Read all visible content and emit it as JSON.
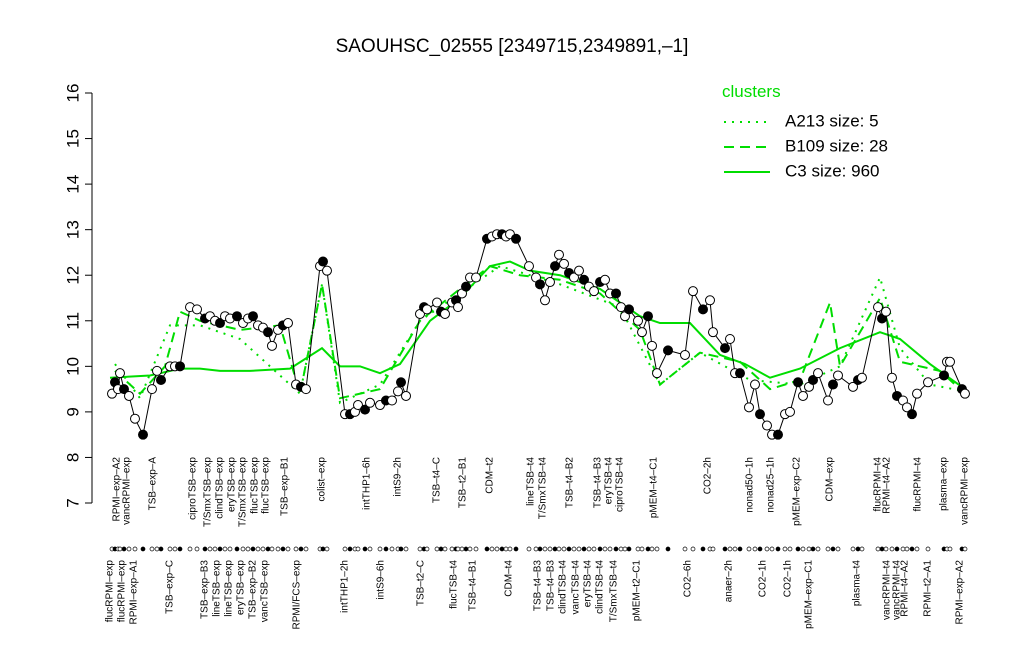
{
  "chart_data": {
    "type": "line",
    "title": "SAOUHSC_02555 [2349715,2349891,–1]",
    "ylim": [
      7,
      16
    ],
    "yticks": [
      7,
      8,
      9,
      10,
      11,
      12,
      13,
      14,
      15,
      16
    ],
    "xlim": [
      100,
      975
    ],
    "x": [
      112,
      115,
      118,
      120,
      124,
      129,
      135,
      143,
      152,
      157,
      161,
      170,
      175,
      180,
      190,
      197,
      205,
      210,
      215,
      220,
      225,
      230,
      237,
      243,
      248,
      253,
      258,
      263,
      268,
      272,
      278,
      283,
      288,
      296,
      301,
      306,
      320,
      323,
      327,
      345,
      350,
      355,
      358,
      365,
      370,
      380,
      386,
      392,
      398,
      401,
      406,
      420,
      424,
      427,
      437,
      441,
      445,
      452,
      456,
      458,
      462,
      466,
      470,
      476,
      487,
      492,
      497,
      502,
      506,
      510,
      516,
      529,
      536,
      540,
      545,
      550,
      555,
      559,
      564,
      569,
      574,
      579,
      584,
      589,
      594,
      600,
      605,
      610,
      616,
      621,
      625,
      629,
      638,
      642,
      648,
      652,
      657,
      668,
      685,
      693,
      703,
      710,
      713,
      725,
      730,
      735,
      740,
      749,
      755,
      760,
      767,
      772,
      778,
      785,
      790,
      798,
      803,
      809,
      813,
      818,
      828,
      833,
      838,
      853,
      858,
      862,
      878,
      882,
      886,
      892,
      897,
      903,
      907,
      912,
      917,
      928,
      944,
      947,
      950,
      962,
      965
    ],
    "values": [
      9.4,
      9.65,
      9.5,
      9.85,
      9.5,
      9.35,
      8.85,
      8.5,
      9.5,
      9.9,
      9.7,
      10.0,
      10.0,
      10.0,
      11.3,
      11.25,
      11.05,
      11.1,
      11.0,
      10.95,
      11.1,
      11.05,
      11.1,
      10.95,
      11.05,
      11.1,
      10.9,
      10.85,
      10.75,
      10.45,
      10.8,
      10.9,
      10.95,
      9.6,
      9.55,
      9.5,
      12.2,
      12.3,
      12.1,
      8.95,
      8.95,
      9.0,
      9.15,
      9.05,
      9.2,
      9.15,
      9.25,
      9.25,
      9.45,
      9.65,
      9.35,
      11.15,
      11.3,
      11.25,
      11.4,
      11.2,
      11.15,
      11.4,
      11.45,
      11.3,
      11.6,
      11.75,
      11.95,
      11.95,
      12.8,
      12.85,
      12.9,
      12.9,
      12.85,
      12.9,
      12.8,
      12.2,
      11.95,
      11.8,
      11.45,
      11.85,
      12.2,
      12.45,
      12.25,
      12.05,
      11.95,
      12.1,
      11.9,
      11.75,
      11.65,
      11.85,
      11.9,
      11.6,
      11.6,
      11.3,
      11.1,
      11.25,
      11.0,
      10.75,
      11.1,
      10.45,
      9.85,
      10.35,
      10.25,
      11.65,
      11.25,
      11.45,
      10.75,
      10.4,
      10.6,
      9.85,
      9.85,
      9.1,
      9.6,
      8.95,
      8.7,
      8.5,
      8.5,
      8.95,
      9.0,
      9.65,
      9.35,
      9.55,
      9.7,
      9.85,
      9.25,
      9.6,
      9.8,
      9.55,
      9.7,
      9.75,
      11.3,
      11.05,
      11.2,
      9.75,
      9.35,
      9.25,
      9.1,
      8.95,
      9.4,
      9.65,
      9.8,
      10.1,
      10.1,
      9.5,
      9.4
    ],
    "color": "#000000",
    "legend_title": "clusters",
    "series": [
      {
        "name": "A213 size: 5",
        "color": "#00dd00",
        "dash": "dotted",
        "x": [
          115,
          140,
          170,
          200,
          240,
          300,
          322,
          340,
          380,
          420,
          460,
          500,
          560,
          620,
          660,
          700,
          750,
          800,
          840,
          880,
          900,
          930,
          965
        ],
        "values": [
          10.05,
          9.3,
          10.9,
          10.9,
          10.6,
          9.4,
          11.8,
          9.2,
          9.6,
          11.0,
          11.6,
          12.2,
          11.8,
          11.3,
          9.6,
          10.3,
          9.7,
          9.6,
          10.0,
          11.95,
          10.4,
          9.6,
          9.45
        ]
      },
      {
        "name": "B109 size: 28",
        "color": "#00dd00",
        "dash": "dashed",
        "x": [
          115,
          140,
          165,
          180,
          200,
          240,
          280,
          300,
          322,
          340,
          380,
          420,
          460,
          490,
          520,
          560,
          600,
          640,
          660,
          700,
          740,
          770,
          800,
          830,
          840,
          880,
          900,
          940,
          965
        ],
        "values": [
          9.9,
          9.4,
          10.0,
          11.2,
          11.0,
          10.8,
          10.9,
          9.4,
          11.8,
          9.3,
          9.5,
          11.0,
          11.7,
          12.2,
          12.0,
          11.9,
          11.6,
          10.8,
          9.6,
          10.3,
          10.1,
          9.5,
          9.7,
          11.4,
          10.0,
          11.5,
          10.1,
          9.9,
          9.4
        ]
      },
      {
        "name": "C3 size: 960",
        "color": "#00dd00",
        "dash": "solid",
        "x": [
          110,
          150,
          180,
          200,
          220,
          250,
          290,
          322,
          340,
          360,
          380,
          400,
          430,
          460,
          490,
          510,
          530,
          560,
          600,
          640,
          660,
          690,
          720,
          745,
          770,
          800,
          840,
          880,
          900,
          930,
          965
        ],
        "values": [
          9.75,
          9.8,
          9.95,
          9.95,
          9.9,
          9.9,
          9.95,
          10.4,
          10.0,
          10.0,
          9.85,
          10.05,
          11.0,
          11.5,
          12.2,
          12.3,
          12.1,
          12.0,
          11.7,
          11.1,
          10.95,
          10.95,
          10.25,
          10.05,
          9.75,
          9.95,
          10.4,
          10.75,
          10.6,
          10.05,
          9.5
        ]
      }
    ],
    "xticks_top": [
      {
        "value": 117,
        "label": "RPMI–exp–A2"
      },
      {
        "value": 127,
        "label": "vancRPMI–exp"
      },
      {
        "value": 153,
        "label": "TSB–exp–A"
      },
      {
        "value": 193,
        "label": "ciproTSB–exp"
      },
      {
        "value": 208,
        "label": "T/SmxTSB–exp"
      },
      {
        "value": 220,
        "label": "clindTSB–exp"
      },
      {
        "value": 232,
        "label": "eryTSB–exp"
      },
      {
        "value": 243,
        "label": "T/SmxTSB–exp"
      },
      {
        "value": 255,
        "label": "flucTSB–exp"
      },
      {
        "value": 266,
        "label": "flucTSB–exp"
      },
      {
        "value": 285,
        "label": "TSB–exp–B1"
      },
      {
        "value": 322,
        "label": "colist–exp"
      },
      {
        "value": 367,
        "label": "intTHP1–6h"
      },
      {
        "value": 398,
        "label": "intS9–2h"
      },
      {
        "value": 437,
        "label": "TSB–t4–C"
      },
      {
        "value": 463,
        "label": "TSB–t2–B1"
      },
      {
        "value": 490,
        "label": "CDM–t2"
      },
      {
        "value": 531,
        "label": "lineTSB–t4"
      },
      {
        "value": 543,
        "label": "T/SmxTSB–t4"
      },
      {
        "value": 570,
        "label": "TSB–t4–B2"
      },
      {
        "value": 598,
        "label": "TSB–t4–B3"
      },
      {
        "value": 609,
        "label": "eryTSB–t4"
      },
      {
        "value": 620,
        "label": "ciproTSB–t4"
      },
      {
        "value": 654,
        "label": "pMEM–t4–C1"
      },
      {
        "value": 708,
        "label": "CO2–2h"
      },
      {
        "value": 750,
        "label": "nonad50–1h"
      },
      {
        "value": 771,
        "label": "nonad25–1h"
      },
      {
        "value": 797,
        "label": "pMEM–exp–C2"
      },
      {
        "value": 830,
        "label": "CDM–exp"
      },
      {
        "value": 878,
        "label": "flucRPMI–t4"
      },
      {
        "value": 887,
        "label": "RPMI–t4–A2"
      },
      {
        "value": 918,
        "label": "flucRPMI–t4"
      },
      {
        "value": 944,
        "label": "plasma–exp"
      },
      {
        "value": 965,
        "label": "vancRPMI–exp"
      }
    ],
    "xticks_bottom": [
      {
        "value": 110,
        "label": "flucRPMI–exp"
      },
      {
        "value": 122,
        "label": "flucRPMI–exp"
      },
      {
        "value": 134,
        "label": "RPMI–exp–A1"
      },
      {
        "value": 170,
        "label": "TSB–exp–C"
      },
      {
        "value": 205,
        "label": "TSB–exp–B3"
      },
      {
        "value": 217,
        "label": "lineTSB–exp"
      },
      {
        "value": 229,
        "label": "lineTSB–exp"
      },
      {
        "value": 241,
        "label": "eryTSB–exp"
      },
      {
        "value": 253,
        "label": "TSB–exp–B2"
      },
      {
        "value": 265,
        "label": "vancTSB–exp"
      },
      {
        "value": 297,
        "label": "RPMI/FCS–exp"
      },
      {
        "value": 345,
        "label": "intTHP1–2h"
      },
      {
        "value": 381,
        "label": "intS9–6h"
      },
      {
        "value": 421,
        "label": "TSB–t2–C"
      },
      {
        "value": 454,
        "label": "flucTSB–t4"
      },
      {
        "value": 473,
        "label": "TSB–t4–B1"
      },
      {
        "value": 509,
        "label": "CDM–t4"
      },
      {
        "value": 538,
        "label": "TSB–t4–B3"
      },
      {
        "value": 551,
        "label": "TSB–t4–B3"
      },
      {
        "value": 563,
        "label": "clindTSB–t4"
      },
      {
        "value": 576,
        "label": "vancTSB–t4"
      },
      {
        "value": 588,
        "label": "eryTSB–t4"
      },
      {
        "value": 600,
        "label": "clindTSB–t4"
      },
      {
        "value": 614,
        "label": "T/SmxTSB–t4"
      },
      {
        "value": 637,
        "label": "pMEM–t2–C1"
      },
      {
        "value": 688,
        "label": "CO2–6h"
      },
      {
        "value": 729,
        "label": "anaer–2h"
      },
      {
        "value": 763,
        "label": "CO2–1h"
      },
      {
        "value": 788,
        "label": "CO2–1h"
      },
      {
        "value": 809,
        "label": "pMEM–exp–C1"
      },
      {
        "value": 857,
        "label": "plasma–t4"
      },
      {
        "value": 887,
        "label": "vancRPMI–t4"
      },
      {
        "value": 897,
        "label": "vancRPMI–t4"
      },
      {
        "value": 905,
        "label": "RPMI–t4–A2"
      },
      {
        "value": 928,
        "label": "RPMI–t2–A1"
      },
      {
        "value": 960,
        "label": "RPMI–exp–A2"
      }
    ]
  }
}
